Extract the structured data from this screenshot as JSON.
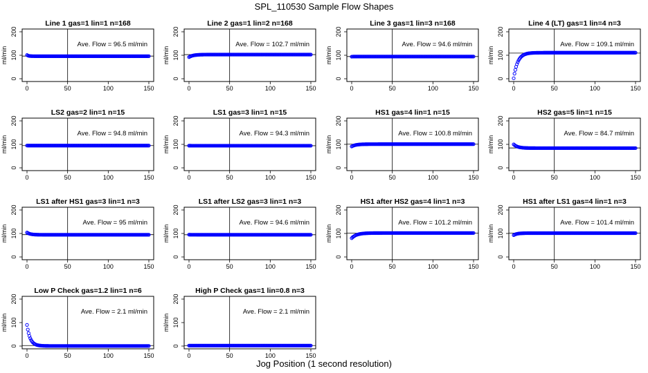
{
  "figure": {
    "title": "SPL_110530  Sample Flow Shapes",
    "xlabel": "Jog Position (1 second resolution)"
  },
  "chart_data": [
    {
      "type": "scatter",
      "title": "Line 1 gas=1 lin=1 n=168",
      "xlabel": "",
      "ylabel": "ml/min",
      "xlim": [
        0,
        150
      ],
      "ylim": [
        0,
        200
      ],
      "xticks": [
        0,
        50,
        100,
        150
      ],
      "yticks": [
        0,
        100,
        200
      ],
      "vline_x": 50,
      "hline_y": 96.5,
      "annotation": "Ave. Flow =  96.5  ml/min",
      "shape": {
        "start": 101,
        "end": 96,
        "tau": 2
      }
    },
    {
      "type": "scatter",
      "title": "Line 2 gas=1 lin=2 n=168",
      "xlabel": "",
      "ylabel": "ml/min",
      "xlim": [
        0,
        150
      ],
      "ylim": [
        0,
        200
      ],
      "xticks": [
        0,
        50,
        100,
        150
      ],
      "yticks": [
        0,
        100,
        200
      ],
      "vline_x": 50,
      "hline_y": 102.7,
      "annotation": "Ave. Flow =  102.7  ml/min",
      "shape": {
        "start": 92,
        "end": 103,
        "tau": 5
      }
    },
    {
      "type": "scatter",
      "title": "Line 3 gas=1 lin=3 n=168",
      "xlabel": "",
      "ylabel": "ml/min",
      "xlim": [
        0,
        150
      ],
      "ylim": [
        0,
        200
      ],
      "xticks": [
        0,
        50,
        100,
        150
      ],
      "yticks": [
        0,
        100,
        200
      ],
      "vline_x": 50,
      "hline_y": 94.6,
      "annotation": "Ave. Flow =  94.6  ml/min",
      "shape": {
        "start": 94,
        "end": 94.6,
        "tau": 2
      }
    },
    {
      "type": "scatter",
      "title": "Line 4 (LT) gas=1 lin=4 n=3",
      "xlabel": "",
      "ylabel": "ml/min",
      "xlim": [
        0,
        150
      ],
      "ylim": [
        0,
        200
      ],
      "xticks": [
        0,
        50,
        100,
        150
      ],
      "yticks": [
        0,
        100,
        200
      ],
      "vline_x": 50,
      "hline_y": 109.1,
      "annotation": "Ave. Flow =  109.1  ml/min",
      "shape": {
        "start": 2,
        "end": 111,
        "tau": 5
      }
    },
    {
      "type": "scatter",
      "title": "LS2 gas=2 lin=1 n=15",
      "xlabel": "",
      "ylabel": "ml/min",
      "xlim": [
        0,
        150
      ],
      "ylim": [
        0,
        200
      ],
      "xticks": [
        0,
        50,
        100,
        150
      ],
      "yticks": [
        0,
        100,
        200
      ],
      "vline_x": 50,
      "hline_y": 94.8,
      "annotation": "Ave. Flow =  94.8  ml/min",
      "shape": {
        "start": 95,
        "end": 94.8,
        "tau": 2
      }
    },
    {
      "type": "scatter",
      "title": "LS1 gas=3 lin=1 n=15",
      "xlabel": "",
      "ylabel": "ml/min",
      "xlim": [
        0,
        150
      ],
      "ylim": [
        0,
        200
      ],
      "xticks": [
        0,
        50,
        100,
        150
      ],
      "yticks": [
        0,
        100,
        200
      ],
      "vline_x": 50,
      "hline_y": 94.3,
      "annotation": "Ave. Flow =  94.3  ml/min",
      "shape": {
        "start": 94.5,
        "end": 94.3,
        "tau": 2
      }
    },
    {
      "type": "scatter",
      "title": "HS1 gas=4 lin=1 n=15",
      "xlabel": "",
      "ylabel": "ml/min",
      "xlim": [
        0,
        150
      ],
      "ylim": [
        0,
        200
      ],
      "xticks": [
        0,
        50,
        100,
        150
      ],
      "yticks": [
        0,
        100,
        200
      ],
      "vline_x": 50,
      "hline_y": 100.8,
      "annotation": "Ave. Flow =  100.8  ml/min",
      "shape": {
        "start": 91,
        "end": 101,
        "tau": 5
      }
    },
    {
      "type": "scatter",
      "title": "HS2 gas=5 lin=1 n=15",
      "xlabel": "",
      "ylabel": "ml/min",
      "xlim": [
        0,
        150
      ],
      "ylim": [
        0,
        200
      ],
      "xticks": [
        0,
        50,
        100,
        150
      ],
      "yticks": [
        0,
        100,
        200
      ],
      "vline_x": 50,
      "hline_y": 84.7,
      "annotation": "Ave. Flow =  84.7  ml/min",
      "shape": {
        "start": 100,
        "end": 84,
        "tau": 5
      }
    },
    {
      "type": "scatter",
      "title": "LS1 after HS1 gas=3 lin=1 n=3",
      "xlabel": "",
      "ylabel": "ml/min",
      "xlim": [
        0,
        150
      ],
      "ylim": [
        0,
        200
      ],
      "xticks": [
        0,
        50,
        100,
        150
      ],
      "yticks": [
        0,
        100,
        200
      ],
      "vline_x": 50,
      "hline_y": 95,
      "annotation": "Ave. Flow =  95  ml/min",
      "shape": {
        "start": 104,
        "end": 94.5,
        "tau": 4
      }
    },
    {
      "type": "scatter",
      "title": "LS1 after LS2 gas=3 lin=1 n=3",
      "xlabel": "",
      "ylabel": "ml/min",
      "xlim": [
        0,
        150
      ],
      "ylim": [
        0,
        200
      ],
      "xticks": [
        0,
        50,
        100,
        150
      ],
      "yticks": [
        0,
        100,
        200
      ],
      "vline_x": 50,
      "hline_y": 94.6,
      "annotation": "Ave. Flow =  94.6  ml/min",
      "shape": {
        "start": 95,
        "end": 94.6,
        "tau": 2
      }
    },
    {
      "type": "scatter",
      "title": "HS1 after HS2 gas=4 lin=1 n=3",
      "xlabel": "",
      "ylabel": "ml/min",
      "xlim": [
        0,
        150
      ],
      "ylim": [
        0,
        200
      ],
      "xticks": [
        0,
        50,
        100,
        150
      ],
      "yticks": [
        0,
        100,
        200
      ],
      "vline_x": 50,
      "hline_y": 101.2,
      "annotation": "Ave. Flow =  101.2  ml/min",
      "shape": {
        "start": 80,
        "end": 102,
        "tau": 6
      }
    },
    {
      "type": "scatter",
      "title": "HS1 after LS1 gas=4 lin=1 n=3",
      "xlabel": "",
      "ylabel": "ml/min",
      "xlim": [
        0,
        150
      ],
      "ylim": [
        0,
        200
      ],
      "xticks": [
        0,
        50,
        100,
        150
      ],
      "yticks": [
        0,
        100,
        200
      ],
      "vline_x": 50,
      "hline_y": 101.4,
      "annotation": "Ave. Flow =  101.4  ml/min",
      "shape": {
        "start": 93,
        "end": 101.5,
        "tau": 4
      }
    },
    {
      "type": "scatter",
      "title": "Low P Check gas=1.2 lin=1 n=6",
      "xlabel": "",
      "ylabel": "ml/min",
      "xlim": [
        0,
        150
      ],
      "ylim": [
        0,
        200
      ],
      "xticks": [
        0,
        50,
        100,
        150
      ],
      "yticks": [
        0,
        100,
        200
      ],
      "vline_x": 50,
      "hline_y": 2.1,
      "annotation": "Ave. Flow =  2.1  ml/min",
      "shape": {
        "start": 90,
        "end": 0.5,
        "tau": 4
      }
    },
    {
      "type": "scatter",
      "title": "High P Check gas=1 lin=0.8 n=3",
      "xlabel": "",
      "ylabel": "ml/min",
      "xlim": [
        0,
        150
      ],
      "ylim": [
        0,
        200
      ],
      "xticks": [
        0,
        50,
        100,
        150
      ],
      "yticks": [
        0,
        100,
        200
      ],
      "vline_x": 50,
      "hline_y": 2.1,
      "annotation": "Ave. Flow =  2.1  ml/min",
      "shape": {
        "start": 2.1,
        "end": 2.1,
        "tau": 2
      }
    }
  ],
  "colors": {
    "points": "#0000ff",
    "axes": "#000000"
  }
}
